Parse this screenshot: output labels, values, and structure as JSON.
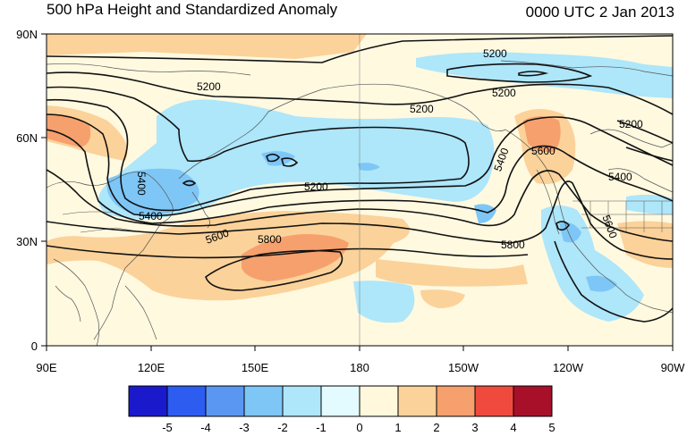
{
  "title": "500 hPa Height and Standardized Anomaly",
  "valid_time": "0000 UTC 2 Jan 2013",
  "lat_labels": [
    "90N",
    "60N",
    "30N",
    "0"
  ],
  "lon_labels": [
    "90E",
    "120E",
    "150E",
    "180",
    "150W",
    "120W",
    "90W"
  ],
  "contour_labels": [
    "5200",
    "5200",
    "5200",
    "5200",
    "5200",
    "5200",
    "5400",
    "5400",
    "5400",
    "5400",
    "5600",
    "5600",
    "5600",
    "5800",
    "5800"
  ],
  "colorbar": {
    "labels": [
      "-5",
      "-4",
      "-3",
      "-2",
      "-1",
      "0",
      "1",
      "2",
      "3",
      "4",
      "5"
    ],
    "colors": [
      "#1a1acc",
      "#2d5cf0",
      "#5a97f3",
      "#7ec6f6",
      "#aee6fa",
      "#e3fbff",
      "#fff8dd",
      "#fbd29a",
      "#f6a06e",
      "#f04a3e",
      "#a8102a"
    ]
  },
  "colors": {
    "land_line": "#555555",
    "contour": "#111111"
  }
}
